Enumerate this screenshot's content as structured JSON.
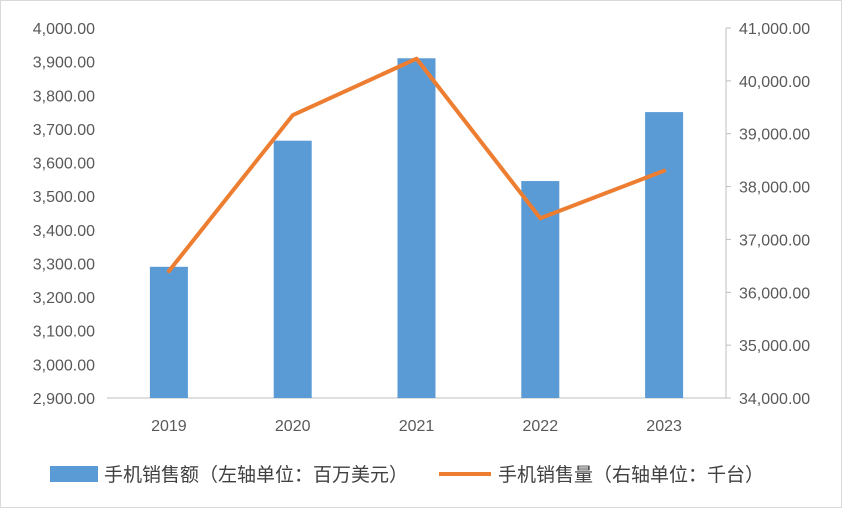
{
  "chart_data": {
    "type": "bar",
    "categories": [
      "2019",
      "2020",
      "2021",
      "2022",
      "2023"
    ],
    "series": [
      {
        "name": "手机销售额（左轴单位：百万美元）",
        "type": "bar",
        "axis": "left",
        "color": "#5b9bd5",
        "values": [
          3290,
          3665,
          3910,
          3545,
          3750
        ]
      },
      {
        "name": "手机销售量（右轴单位：千台）",
        "type": "line",
        "axis": "right",
        "color": "#ed7d31",
        "values": [
          36400,
          39350,
          40420,
          37400,
          38300
        ]
      }
    ],
    "y_left": {
      "ylim": [
        2900,
        4000
      ],
      "ticks": [
        "2,900.00",
        "3,000.00",
        "3,100.00",
        "3,200.00",
        "3,300.00",
        "3,400.00",
        "3,500.00",
        "3,600.00",
        "3,700.00",
        "3,800.00",
        "3,900.00",
        "4,000.00"
      ]
    },
    "y_right": {
      "ylim": [
        34000,
        41000
      ],
      "ticks": [
        "34,000.00",
        "35,000.00",
        "36,000.00",
        "37,000.00",
        "38,000.00",
        "39,000.00",
        "40,000.00",
        "41,000.00"
      ]
    },
    "grid": false,
    "legend": "bottom"
  }
}
